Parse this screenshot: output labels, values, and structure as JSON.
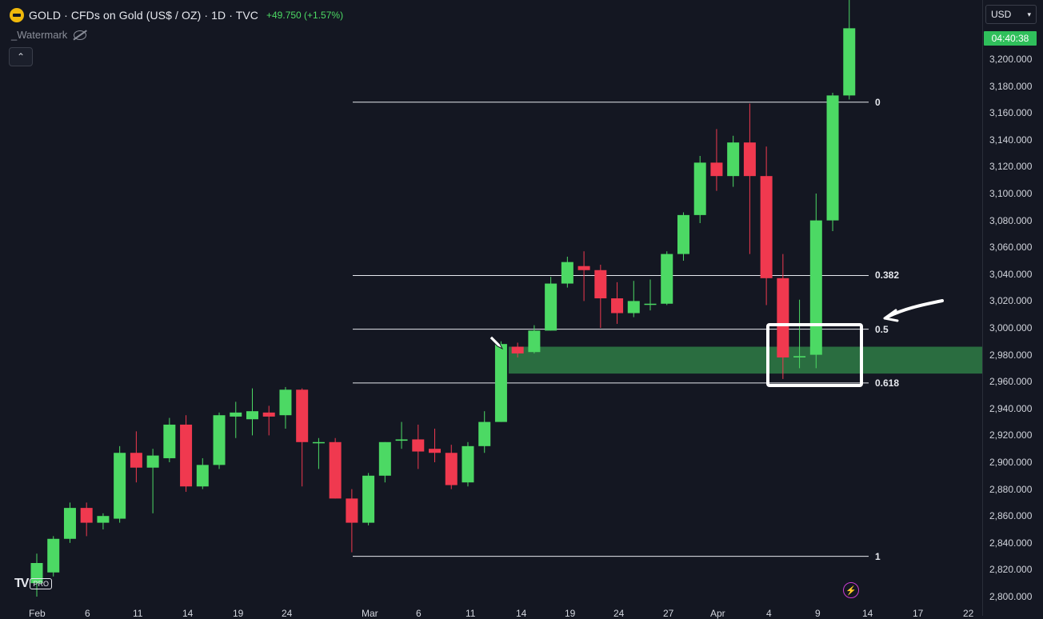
{
  "header": {
    "title": "GOLD · CFDs on Gold (US$ / OZ) · 1D · TVC",
    "change": "+49.750 (+1.57%)",
    "watermark": "_Watermark"
  },
  "currency": "USD",
  "countdown": "04:40:38",
  "price_axis": [
    "3,200.000",
    "3,180.000",
    "3,160.000",
    "3,140.000",
    "3,120.000",
    "3,100.000",
    "3,080.000",
    "3,060.000",
    "3,040.000",
    "3,020.000",
    "3,000.000",
    "2,980.000",
    "2,960.000",
    "2,940.000",
    "2,920.000",
    "2,900.000",
    "2,880.000",
    "2,860.000",
    "2,840.000",
    "2,820.000",
    "2,800.000"
  ],
  "date_axis": [
    "Feb",
    "6",
    "11",
    "14",
    "19",
    "24",
    "Mar",
    "6",
    "11",
    "14",
    "19",
    "24",
    "27",
    "Apr",
    "4",
    "9",
    "14",
    "17",
    "22"
  ],
  "fib_levels": [
    "0",
    "0.382",
    "0.5",
    "0.618",
    "1"
  ],
  "logo": {
    "mark": "TV",
    "badge": "PRO"
  },
  "colors": {
    "up": "#4cd964",
    "down": "#f0394f",
    "zone": "#2e7d45"
  },
  "chart_data": {
    "type": "candlestick",
    "title": "GOLD · CFDs on Gold (US$ / OZ) · 1D · TVC",
    "ylim": [
      2800,
      3220
    ],
    "candles": [
      {
        "o": 2810,
        "h": 2832,
        "l": 2800,
        "c": 2825
      },
      {
        "o": 2818,
        "h": 2845,
        "l": 2815,
        "c": 2843
      },
      {
        "o": 2843,
        "h": 2870,
        "l": 2840,
        "c": 2866
      },
      {
        "o": 2866,
        "h": 2870,
        "l": 2845,
        "c": 2855
      },
      {
        "o": 2855,
        "h": 2862,
        "l": 2850,
        "c": 2860
      },
      {
        "o": 2858,
        "h": 2912,
        "l": 2855,
        "c": 2907
      },
      {
        "o": 2907,
        "h": 2923,
        "l": 2885,
        "c": 2896
      },
      {
        "o": 2896,
        "h": 2910,
        "l": 2862,
        "c": 2905
      },
      {
        "o": 2903,
        "h": 2933,
        "l": 2900,
        "c": 2928
      },
      {
        "o": 2928,
        "h": 2935,
        "l": 2878,
        "c": 2882
      },
      {
        "o": 2882,
        "h": 2903,
        "l": 2880,
        "c": 2898
      },
      {
        "o": 2898,
        "h": 2937,
        "l": 2895,
        "c": 2935
      },
      {
        "o": 2934,
        "h": 2945,
        "l": 2918,
        "c": 2937
      },
      {
        "o": 2932,
        "h": 2955,
        "l": 2920,
        "c": 2938
      },
      {
        "o": 2937,
        "h": 2942,
        "l": 2920,
        "c": 2934
      },
      {
        "o": 2935,
        "h": 2956,
        "l": 2925,
        "c": 2954
      },
      {
        "o": 2954,
        "h": 2955,
        "l": 2882,
        "c": 2915
      },
      {
        "o": 2915,
        "h": 2918,
        "l": 2895,
        "c": 2915
      },
      {
        "o": 2915,
        "h": 2918,
        "l": 2873,
        "c": 2873
      },
      {
        "o": 2873,
        "h": 2880,
        "l": 2833,
        "c": 2855
      },
      {
        "o": 2855,
        "h": 2892,
        "l": 2853,
        "c": 2890
      },
      {
        "o": 2890,
        "h": 2915,
        "l": 2885,
        "c": 2915
      },
      {
        "o": 2916,
        "h": 2930,
        "l": 2910,
        "c": 2917
      },
      {
        "o": 2917,
        "h": 2928,
        "l": 2895,
        "c": 2908
      },
      {
        "o": 2910,
        "h": 2925,
        "l": 2900,
        "c": 2907
      },
      {
        "o": 2907,
        "h": 2913,
        "l": 2880,
        "c": 2883
      },
      {
        "o": 2885,
        "h": 2915,
        "l": 2882,
        "c": 2912
      },
      {
        "o": 2912,
        "h": 2938,
        "l": 2907,
        "c": 2930
      },
      {
        "o": 2930,
        "h": 2990,
        "l": 2930,
        "c": 2988
      },
      {
        "o": 2986,
        "h": 2989,
        "l": 2978,
        "c": 2981
      },
      {
        "o": 2982,
        "h": 3002,
        "l": 2981,
        "c": 2998
      },
      {
        "o": 2998,
        "h": 3038,
        "l": 2998,
        "c": 3033
      },
      {
        "o": 3033,
        "h": 3053,
        "l": 3030,
        "c": 3049
      },
      {
        "o": 3046,
        "h": 3057,
        "l": 3020,
        "c": 3043
      },
      {
        "o": 3043,
        "h": 3047,
        "l": 3000,
        "c": 3022
      },
      {
        "o": 3022,
        "h": 3034,
        "l": 3003,
        "c": 3011
      },
      {
        "o": 3011,
        "h": 3035,
        "l": 3008,
        "c": 3020
      },
      {
        "o": 3018,
        "h": 3036,
        "l": 3013,
        "c": 3018
      },
      {
        "o": 3018,
        "h": 3057,
        "l": 3017,
        "c": 3055
      },
      {
        "o": 3055,
        "h": 3086,
        "l": 3050,
        "c": 3084
      },
      {
        "o": 3084,
        "h": 3128,
        "l": 3078,
        "c": 3123
      },
      {
        "o": 3123,
        "h": 3148,
        "l": 3102,
        "c": 3113
      },
      {
        "o": 3113,
        "h": 3143,
        "l": 3105,
        "c": 3138
      },
      {
        "o": 3138,
        "h": 3167,
        "l": 3055,
        "c": 3113
      },
      {
        "o": 3113,
        "h": 3135,
        "l": 3017,
        "c": 3037
      },
      {
        "o": 3037,
        "h": 3055,
        "l": 2962,
        "c": 2978
      },
      {
        "o": 2978,
        "h": 3021,
        "l": 2970,
        "c": 2979
      },
      {
        "o": 2980,
        "h": 3100,
        "l": 2970,
        "c": 3080
      },
      {
        "o": 3080,
        "h": 3175,
        "l": 3072,
        "c": 3173
      },
      {
        "o": 3173,
        "h": 3245,
        "l": 3170,
        "c": 3223
      }
    ],
    "fibonacci": [
      {
        "level": "0",
        "price": 3168
      },
      {
        "level": "0.382",
        "price": 3039
      },
      {
        "level": "0.5",
        "price": 2999
      },
      {
        "level": "0.618",
        "price": 2959
      },
      {
        "level": "1",
        "price": 2830
      }
    ],
    "zone": [
      2966,
      2986
    ]
  }
}
